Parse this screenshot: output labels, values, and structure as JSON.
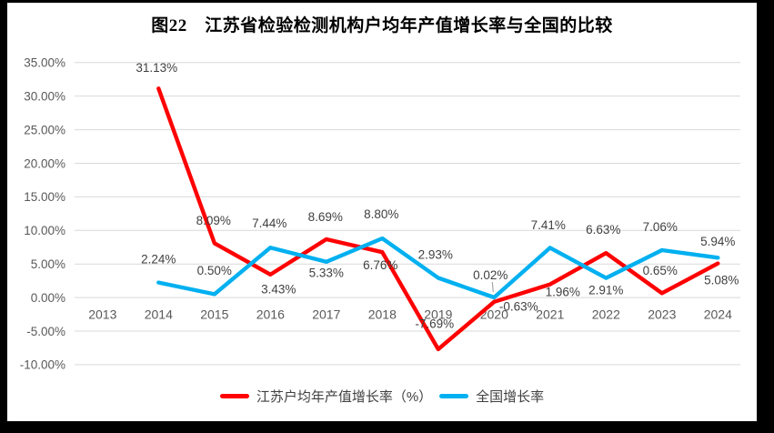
{
  "chart_data": {
    "type": "line",
    "title": "图22　江苏省检验检测机构户均年产值增长率与全国的比较",
    "categories": [
      "2013",
      "2014",
      "2015",
      "2016",
      "2017",
      "2018",
      "2019",
      "2020",
      "2021",
      "2022",
      "2023",
      "2024"
    ],
    "y_axis": {
      "max": 35,
      "min": -10,
      "step": 5,
      "ticks": [
        "35.00%",
        "30.00%",
        "25.00%",
        "20.00%",
        "15.00%",
        "10.00%",
        "5.00%",
        "0.00%",
        "-5.00%",
        "-10.00%"
      ]
    },
    "grid": true,
    "legend_position": "bottom",
    "colors": {
      "grid": "#D9D9D9",
      "axis_text": "#595959",
      "label_text": "#404040",
      "leader": "#A6A6A6",
      "background": "#FFFFFF",
      "frame": "#000000"
    },
    "series": [
      {
        "id": "jiangsu",
        "name": "江苏户均年产值增长率（%）",
        "color": "#FF0000",
        "points": [
          {
            "x": "2014",
            "y": 31.13,
            "label": "31.13%",
            "ldx": -2,
            "ldy": -23
          },
          {
            "x": "2015",
            "y": 8.09,
            "label": "8.09%",
            "ldx": -1,
            "ldy": -25
          },
          {
            "x": "2016",
            "y": 3.43,
            "label": "3.43%",
            "ldx": 9,
            "ldy": 16
          },
          {
            "x": "2017",
            "y": 8.69,
            "label": "8.69%",
            "ldx": -1,
            "ldy": -25
          },
          {
            "x": "2018",
            "y": 6.76,
            "label": "6.76%",
            "ldx": -2,
            "ldy": 14
          },
          {
            "x": "2019",
            "y": -7.69,
            "label": "-7.69%",
            "ldx": -4,
            "ldy": -28
          },
          {
            "x": "2020",
            "y": -0.63,
            "label": "-0.63%",
            "ldx": 27,
            "ldy": 5
          },
          {
            "x": "2021",
            "y": 1.96,
            "label": "1.96%",
            "ldx": 14,
            "ldy": 8
          },
          {
            "x": "2022",
            "y": 6.63,
            "label": "6.63%",
            "ldx": -3,
            "ldy": -26
          },
          {
            "x": "2023",
            "y": 0.65,
            "label": "0.65%",
            "ldx": -2,
            "ldy": -25
          },
          {
            "x": "2024",
            "y": 5.08,
            "label": "5.08%",
            "ldx": 4,
            "ldy": 18
          }
        ]
      },
      {
        "id": "national",
        "name": "全国增长率",
        "color": "#00B0F0",
        "points": [
          {
            "x": "2014",
            "y": 2.24,
            "label": "2.24%",
            "ldx": 0,
            "ldy": -26
          },
          {
            "x": "2015",
            "y": 0.5,
            "label": "0.50%",
            "ldx": 0,
            "ldy": -26
          },
          {
            "x": "2016",
            "y": 7.44,
            "label": "7.44%",
            "ldx": -1,
            "ldy": -27
          },
          {
            "x": "2017",
            "y": 5.33,
            "label": "5.33%",
            "ldx": 0,
            "ldy": 12
          },
          {
            "x": "2018",
            "y": 8.8,
            "label": "8.80%",
            "ldx": -1,
            "ldy": -27
          },
          {
            "x": "2019",
            "y": 2.93,
            "label": "2.93%",
            "ldx": -3,
            "ldy": -26
          },
          {
            "x": "2020",
            "y": 0.02,
            "label": "0.02%",
            "ldx": -4,
            "ldy": -25,
            "leader": true
          },
          {
            "x": "2021",
            "y": 7.41,
            "label": "7.41%",
            "ldx": -2,
            "ldy": -25
          },
          {
            "x": "2022",
            "y": 2.91,
            "label": "2.91%",
            "ldx": 0,
            "ldy": 13
          },
          {
            "x": "2023",
            "y": 7.06,
            "label": "7.06%",
            "ldx": -2,
            "ldy": -26
          },
          {
            "x": "2024",
            "y": 5.94,
            "label": "5.94%",
            "ldx": 0,
            "ldy": -18
          }
        ]
      }
    ]
  }
}
